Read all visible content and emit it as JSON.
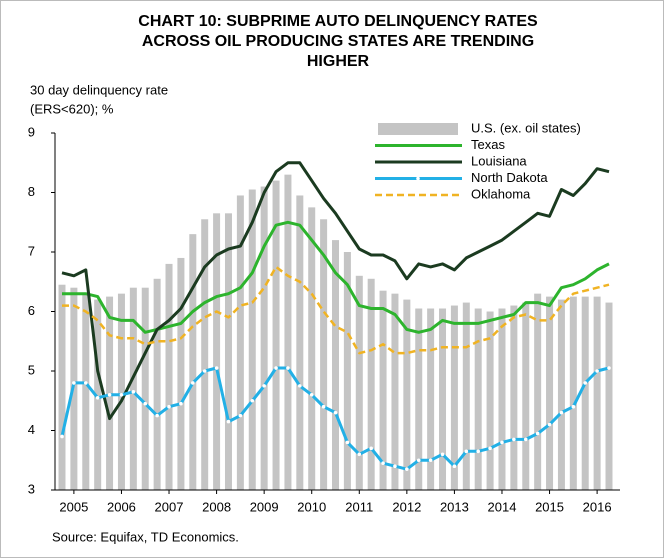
{
  "chart_data": {
    "type": "line",
    "title": [
      "CHART 10: SUBPRIME AUTO DELINQUENCY RATES",
      "ACROSS OIL PRODUCING STATES ARE TRENDING",
      "HIGHER"
    ],
    "y_label": [
      "30 day delinquency rate",
      "(ERS<620); %"
    ],
    "source": "Source: Equifax, TD Economics.",
    "x": [
      2004.75,
      2005,
      2005.25,
      2005.5,
      2005.75,
      2006,
      2006.25,
      2006.5,
      2006.75,
      2007,
      2007.25,
      2007.5,
      2007.75,
      2008,
      2008.25,
      2008.5,
      2008.75,
      2009,
      2009.25,
      2009.5,
      2009.75,
      2010,
      2010.25,
      2010.5,
      2010.75,
      2011,
      2011.25,
      2011.5,
      2011.75,
      2012,
      2012.25,
      2012.5,
      2012.75,
      2013,
      2013.25,
      2013.5,
      2013.75,
      2014,
      2014.25,
      2014.5,
      2014.75,
      2015,
      2015.25,
      2015.5,
      2015.75,
      2016,
      2016.25
    ],
    "xlim": [
      2004.75,
      2016.25
    ],
    "xticks": [
      2005,
      2006,
      2007,
      2008,
      2009,
      2010,
      2011,
      2012,
      2013,
      2014,
      2015,
      2016
    ],
    "ylim": [
      3,
      9
    ],
    "yticks": [
      3,
      4,
      5,
      6,
      7,
      8,
      9
    ],
    "grid": false,
    "legend": "upper right",
    "series": [
      {
        "name": "U.S. (ex. oil states)",
        "type": "bar",
        "color": "#c4c4c4",
        "values": [
          6.45,
          6.4,
          6.3,
          6.2,
          6.25,
          6.3,
          6.4,
          6.4,
          6.55,
          6.8,
          6.9,
          7.3,
          7.55,
          7.65,
          7.65,
          7.95,
          8.05,
          8.1,
          8.2,
          8.3,
          7.95,
          7.75,
          7.55,
          7.2,
          7.0,
          6.6,
          6.55,
          6.35,
          6.3,
          6.2,
          6.05,
          6.05,
          6.05,
          6.1,
          6.15,
          6.05,
          6.0,
          6.05,
          6.1,
          6.15,
          6.3,
          6.25,
          6.2,
          6.25,
          6.25,
          6.25,
          6.15
        ]
      },
      {
        "name": "Texas",
        "type": "line",
        "color": "#2db42d",
        "values": [
          6.3,
          6.3,
          6.3,
          6.25,
          5.9,
          5.85,
          5.85,
          5.65,
          5.7,
          5.75,
          5.8,
          6.0,
          6.15,
          6.25,
          6.3,
          6.4,
          6.65,
          7.1,
          7.45,
          7.5,
          7.45,
          7.2,
          6.95,
          6.65,
          6.45,
          6.1,
          6.05,
          6.05,
          5.95,
          5.7,
          5.65,
          5.7,
          5.85,
          5.8,
          5.8,
          5.8,
          5.85,
          5.9,
          5.95,
          6.15,
          6.15,
          6.1,
          6.4,
          6.45,
          6.55,
          6.7,
          6.8
        ]
      },
      {
        "name": "Louisiana",
        "type": "line",
        "color": "#1b3b20",
        "values": [
          6.65,
          6.6,
          6.7,
          5.0,
          4.2,
          4.5,
          4.9,
          5.3,
          5.7,
          5.85,
          6.05,
          6.4,
          6.75,
          6.95,
          7.05,
          7.1,
          7.5,
          8.0,
          8.35,
          8.5,
          8.5,
          8.2,
          7.9,
          7.65,
          7.35,
          7.05,
          6.95,
          6.95,
          6.85,
          6.55,
          6.8,
          6.75,
          6.8,
          6.7,
          6.9,
          7.0,
          7.1,
          7.2,
          7.35,
          7.5,
          7.65,
          7.6,
          8.05,
          7.95,
          8.15,
          8.4,
          8.35
        ]
      },
      {
        "name": "North Dakota",
        "type": "line",
        "marker": true,
        "color": "#22b0e6",
        "values": [
          3.9,
          4.8,
          4.8,
          4.55,
          4.6,
          4.6,
          4.65,
          4.45,
          4.25,
          4.4,
          4.45,
          4.8,
          5.0,
          5.05,
          4.15,
          4.25,
          4.5,
          4.75,
          5.05,
          5.05,
          4.75,
          4.6,
          4.4,
          4.3,
          3.8,
          3.6,
          3.7,
          3.45,
          3.4,
          3.35,
          3.5,
          3.5,
          3.6,
          3.4,
          3.65,
          3.65,
          3.7,
          3.8,
          3.85,
          3.85,
          3.95,
          4.1,
          4.3,
          4.4,
          4.8,
          5.0,
          5.05
        ]
      },
      {
        "name": "Oklahoma",
        "type": "line",
        "dash": true,
        "color": "#f0b323",
        "values": [
          6.1,
          6.1,
          6.0,
          5.85,
          5.6,
          5.55,
          5.55,
          5.45,
          5.5,
          5.5,
          5.55,
          5.75,
          5.9,
          6.0,
          5.9,
          6.1,
          6.15,
          6.4,
          6.75,
          6.6,
          6.5,
          6.3,
          6.0,
          5.75,
          5.65,
          5.3,
          5.35,
          5.45,
          5.3,
          5.3,
          5.35,
          5.35,
          5.4,
          5.4,
          5.4,
          5.5,
          5.55,
          5.75,
          5.9,
          5.95,
          5.85,
          5.85,
          6.1,
          6.3,
          6.35,
          6.4,
          6.45
        ]
      }
    ]
  }
}
